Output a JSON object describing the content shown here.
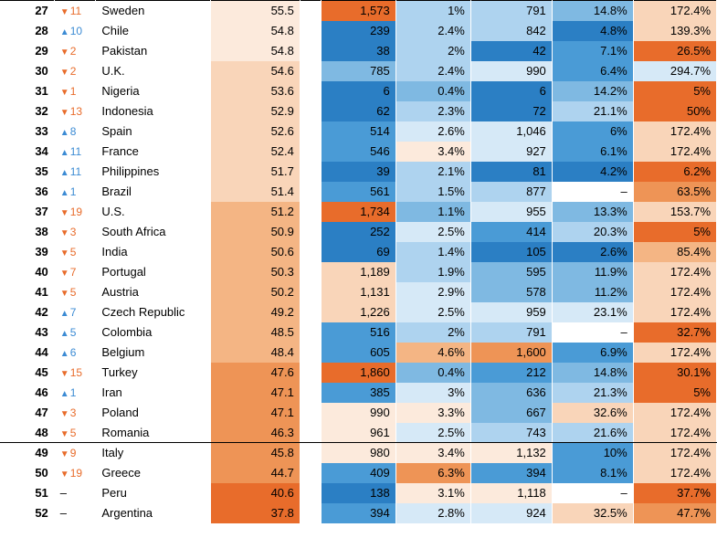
{
  "palette": {
    "blank": "#ffffff",
    "o0": "#fceadc",
    "o1": "#f9d5b9",
    "o2": "#f4b584",
    "o3": "#ee9456",
    "o4": "#e86c2b",
    "b0": "#d6e9f7",
    "b1": "#aed3ef",
    "b2": "#7fb9e2",
    "b3": "#4a9bd6",
    "b4": "#2b7fc4"
  },
  "rows": [
    {
      "rank": 27,
      "chg_dir": "down",
      "chg": 11,
      "country": "Sweden",
      "v1": "55.5",
      "v1c": "o0",
      "v2": "1,573",
      "v2c": "o4",
      "v3": "1%",
      "v3c": "b1",
      "v4": "791",
      "v4c": "b1",
      "v5": "14.8%",
      "v5c": "b2",
      "v6": "172.4%",
      "v6c": "o1",
      "sec": "top"
    },
    {
      "rank": 28,
      "chg_dir": "up",
      "chg": 10,
      "country": "Chile",
      "v1": "54.8",
      "v1c": "o0",
      "v2": "239",
      "v2c": "b4",
      "v3": "2.4%",
      "v3c": "b1",
      "v4": "842",
      "v4c": "b1",
      "v5": "4.8%",
      "v5c": "b4",
      "v6": "139.3%",
      "v6c": "o1",
      "sec": ""
    },
    {
      "rank": 29,
      "chg_dir": "down",
      "chg": 2,
      "country": "Pakistan",
      "v1": "54.8",
      "v1c": "o0",
      "v2": "38",
      "v2c": "b4",
      "v3": "2%",
      "v3c": "b1",
      "v4": "42",
      "v4c": "b4",
      "v5": "7.1%",
      "v5c": "b3",
      "v6": "26.5%",
      "v6c": "o4",
      "sec": ""
    },
    {
      "rank": 30,
      "chg_dir": "down",
      "chg": 2,
      "country": "U.K.",
      "v1": "54.6",
      "v1c": "o1",
      "v2": "785",
      "v2c": "b2",
      "v3": "2.4%",
      "v3c": "b1",
      "v4": "990",
      "v4c": "b0",
      "v5": "6.4%",
      "v5c": "b3",
      "v6": "294.7%",
      "v6c": "b0",
      "sec": ""
    },
    {
      "rank": 31,
      "chg_dir": "down",
      "chg": 1,
      "country": "Nigeria",
      "v1": "53.6",
      "v1c": "o1",
      "v2": "6",
      "v2c": "b4",
      "v3": "0.4%",
      "v3c": "b2",
      "v4": "6",
      "v4c": "b4",
      "v5": "14.2%",
      "v5c": "b2",
      "v6": "5%",
      "v6c": "o4",
      "sec": ""
    },
    {
      "rank": 32,
      "chg_dir": "down",
      "chg": 13,
      "country": "Indonesia",
      "v1": "52.9",
      "v1c": "o1",
      "v2": "62",
      "v2c": "b4",
      "v3": "2.3%",
      "v3c": "b1",
      "v4": "72",
      "v4c": "b4",
      "v5": "21.1%",
      "v5c": "b1",
      "v6": "50%",
      "v6c": "o4",
      "sec": ""
    },
    {
      "rank": 33,
      "chg_dir": "up",
      "chg": 8,
      "country": "Spain",
      "v1": "52.6",
      "v1c": "o1",
      "v2": "514",
      "v2c": "b3",
      "v3": "2.6%",
      "v3c": "b0",
      "v4": "1,046",
      "v4c": "b0",
      "v5": "6%",
      "v5c": "b3",
      "v6": "172.4%",
      "v6c": "o1",
      "sec": ""
    },
    {
      "rank": 34,
      "chg_dir": "up",
      "chg": 11,
      "country": "France",
      "v1": "52.4",
      "v1c": "o1",
      "v2": "546",
      "v2c": "b3",
      "v3": "3.4%",
      "v3c": "o0",
      "v4": "927",
      "v4c": "b0",
      "v5": "6.1%",
      "v5c": "b3",
      "v6": "172.4%",
      "v6c": "o1",
      "sec": ""
    },
    {
      "rank": 35,
      "chg_dir": "up",
      "chg": 11,
      "country": "Philippines",
      "v1": "51.7",
      "v1c": "o1",
      "v2": "39",
      "v2c": "b4",
      "v3": "2.1%",
      "v3c": "b1",
      "v4": "81",
      "v4c": "b4",
      "v5": "4.2%",
      "v5c": "b4",
      "v6": "6.2%",
      "v6c": "o4",
      "sec": ""
    },
    {
      "rank": 36,
      "chg_dir": "up",
      "chg": 1,
      "country": "Brazil",
      "v1": "51.4",
      "v1c": "o1",
      "v2": "561",
      "v2c": "b3",
      "v3": "1.5%",
      "v3c": "b1",
      "v4": "877",
      "v4c": "b1",
      "v5": "–",
      "v5c": "blank",
      "v6": "63.5%",
      "v6c": "o3",
      "sec": ""
    },
    {
      "rank": 37,
      "chg_dir": "down",
      "chg": 19,
      "country": "U.S.",
      "v1": "51.2",
      "v1c": "o2",
      "v2": "1,734",
      "v2c": "o4",
      "v3": "1.1%",
      "v3c": "b2",
      "v4": "955",
      "v4c": "b0",
      "v5": "13.3%",
      "v5c": "b2",
      "v6": "153.7%",
      "v6c": "o1",
      "sec": ""
    },
    {
      "rank": 38,
      "chg_dir": "down",
      "chg": 3,
      "country": "South Africa",
      "v1": "50.9",
      "v1c": "o2",
      "v2": "252",
      "v2c": "b4",
      "v3": "2.5%",
      "v3c": "b0",
      "v4": "414",
      "v4c": "b3",
      "v5": "20.3%",
      "v5c": "b1",
      "v6": "5%",
      "v6c": "o4",
      "sec": ""
    },
    {
      "rank": 39,
      "chg_dir": "down",
      "chg": 5,
      "country": "India",
      "v1": "50.6",
      "v1c": "o2",
      "v2": "69",
      "v2c": "b4",
      "v3": "1.4%",
      "v3c": "b1",
      "v4": "105",
      "v4c": "b4",
      "v5": "2.6%",
      "v5c": "b4",
      "v6": "85.4%",
      "v6c": "o2",
      "sec": ""
    },
    {
      "rank": 40,
      "chg_dir": "down",
      "chg": 7,
      "country": "Portugal",
      "v1": "50.3",
      "v1c": "o2",
      "v2": "1,189",
      "v2c": "o1",
      "v3": "1.9%",
      "v3c": "b1",
      "v4": "595",
      "v4c": "b2",
      "v5": "11.9%",
      "v5c": "b2",
      "v6": "172.4%",
      "v6c": "o1",
      "sec": ""
    },
    {
      "rank": 41,
      "chg_dir": "down",
      "chg": 5,
      "country": "Austria",
      "v1": "50.2",
      "v1c": "o2",
      "v2": "1,131",
      "v2c": "o1",
      "v3": "2.9%",
      "v3c": "b0",
      "v4": "578",
      "v4c": "b2",
      "v5": "11.2%",
      "v5c": "b2",
      "v6": "172.4%",
      "v6c": "o1",
      "sec": ""
    },
    {
      "rank": 42,
      "chg_dir": "up",
      "chg": 7,
      "country": "Czech Republic",
      "v1": "49.2",
      "v1c": "o2",
      "v2": "1,226",
      "v2c": "o1",
      "v3": "2.5%",
      "v3c": "b0",
      "v4": "959",
      "v4c": "b0",
      "v5": "23.1%",
      "v5c": "b0",
      "v6": "172.4%",
      "v6c": "o1",
      "sec": ""
    },
    {
      "rank": 43,
      "chg_dir": "up",
      "chg": 5,
      "country": "Colombia",
      "v1": "48.5",
      "v1c": "o2",
      "v2": "516",
      "v2c": "b3",
      "v3": "2%",
      "v3c": "b1",
      "v4": "791",
      "v4c": "b1",
      "v5": "–",
      "v5c": "blank",
      "v6": "32.7%",
      "v6c": "o4",
      "sec": ""
    },
    {
      "rank": 44,
      "chg_dir": "up",
      "chg": 6,
      "country": "Belgium",
      "v1": "48.4",
      "v1c": "o2",
      "v2": "605",
      "v2c": "b3",
      "v3": "4.6%",
      "v3c": "o2",
      "v4": "1,600",
      "v4c": "o3",
      "v5": "6.9%",
      "v5c": "b3",
      "v6": "172.4%",
      "v6c": "o1",
      "sec": ""
    },
    {
      "rank": 45,
      "chg_dir": "down",
      "chg": 15,
      "country": "Turkey",
      "v1": "47.6",
      "v1c": "o3",
      "v2": "1,860",
      "v2c": "o4",
      "v3": "0.4%",
      "v3c": "b2",
      "v4": "212",
      "v4c": "b3",
      "v5": "14.8%",
      "v5c": "b2",
      "v6": "30.1%",
      "v6c": "o4",
      "sec": ""
    },
    {
      "rank": 46,
      "chg_dir": "up",
      "chg": 1,
      "country": "Iran",
      "v1": "47.1",
      "v1c": "o3",
      "v2": "385",
      "v2c": "b3",
      "v3": "3%",
      "v3c": "b0",
      "v4": "636",
      "v4c": "b2",
      "v5": "21.3%",
      "v5c": "b1",
      "v6": "5%",
      "v6c": "o4",
      "sec": ""
    },
    {
      "rank": 47,
      "chg_dir": "down",
      "chg": 3,
      "country": "Poland",
      "v1": "47.1",
      "v1c": "o3",
      "v2": "990",
      "v2c": "o0",
      "v3": "3.3%",
      "v3c": "o0",
      "v4": "667",
      "v4c": "b2",
      "v5": "32.6%",
      "v5c": "o1",
      "v6": "172.4%",
      "v6c": "o1",
      "sec": ""
    },
    {
      "rank": 48,
      "chg_dir": "down",
      "chg": 5,
      "country": "Romania",
      "v1": "46.3",
      "v1c": "o3",
      "v2": "961",
      "v2c": "o0",
      "v3": "2.5%",
      "v3c": "b0",
      "v4": "743",
      "v4c": "b1",
      "v5": "21.6%",
      "v5c": "b1",
      "v6": "172.4%",
      "v6c": "o1",
      "sec": "bottom"
    },
    {
      "rank": 49,
      "chg_dir": "down",
      "chg": 9,
      "country": "Italy",
      "v1": "45.8",
      "v1c": "o3",
      "v2": "980",
      "v2c": "o0",
      "v3": "3.4%",
      "v3c": "o0",
      "v4": "1,132",
      "v4c": "o0",
      "v5": "10%",
      "v5c": "b3",
      "v6": "172.4%",
      "v6c": "o1",
      "sec": "top"
    },
    {
      "rank": 50,
      "chg_dir": "down",
      "chg": 19,
      "country": "Greece",
      "v1": "44.7",
      "v1c": "o3",
      "v2": "409",
      "v2c": "b3",
      "v3": "6.3%",
      "v3c": "o3",
      "v4": "394",
      "v4c": "b3",
      "v5": "8.1%",
      "v5c": "b3",
      "v6": "172.4%",
      "v6c": "o1",
      "sec": ""
    },
    {
      "rank": 51,
      "chg_dir": "none",
      "chg": "",
      "country": "Peru",
      "v1": "40.6",
      "v1c": "o4",
      "v2": "138",
      "v2c": "b4",
      "v3": "3.1%",
      "v3c": "o0",
      "v4": "1,118",
      "v4c": "o0",
      "v5": "–",
      "v5c": "blank",
      "v6": "37.7%",
      "v6c": "o4",
      "sec": ""
    },
    {
      "rank": 52,
      "chg_dir": "none",
      "chg": "",
      "country": "Argentina",
      "v1": "37.8",
      "v1c": "o4",
      "v2": "394",
      "v2c": "b3",
      "v3": "2.8%",
      "v3c": "b0",
      "v4": "924",
      "v4c": "b0",
      "v5": "32.5%",
      "v5c": "o1",
      "v6": "47.7%",
      "v6c": "o3",
      "sec": ""
    }
  ]
}
